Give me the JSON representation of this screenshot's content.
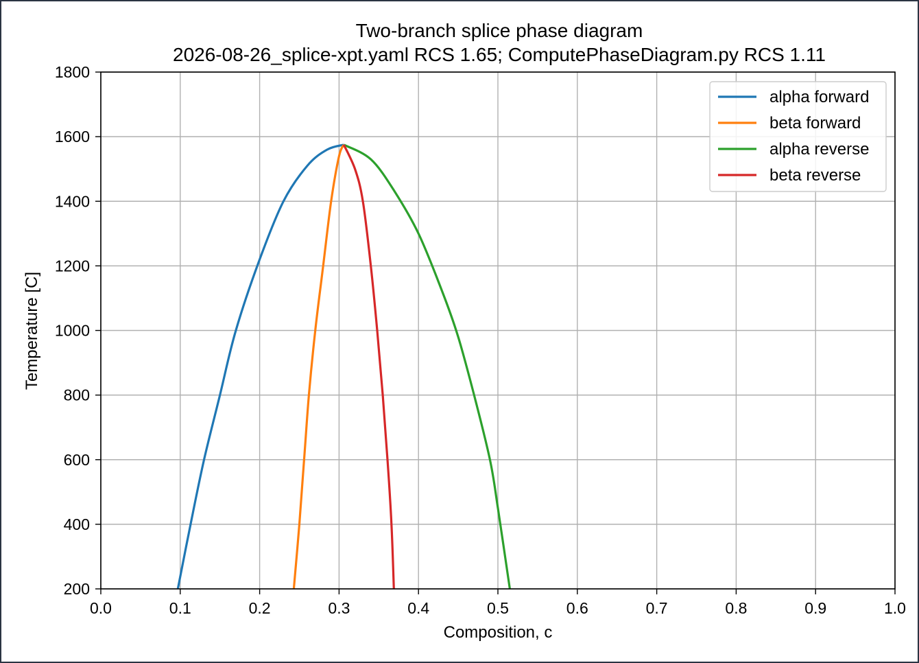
{
  "chart_data": {
    "type": "line",
    "title": "Two-branch splice phase diagram",
    "subtitle": "2026-08-26_splice-xpt.yaml RCS 1.65; ComputePhaseDiagram.py RCS 1.11",
    "xlabel": "Composition, c",
    "ylabel": "Temperature [C]",
    "xlim": [
      0.0,
      1.0
    ],
    "ylim": [
      200,
      1800
    ],
    "xticks": [
      0.0,
      0.1,
      0.2,
      0.3,
      0.4,
      0.5,
      0.6,
      0.7,
      0.8,
      0.9,
      1.0
    ],
    "xtick_labels": [
      "0.0",
      "0.1",
      "0.2",
      "0.3",
      "0.4",
      "0.5",
      "0.6",
      "0.7",
      "0.8",
      "0.9",
      "1.0"
    ],
    "yticks": [
      200,
      400,
      600,
      800,
      1000,
      1200,
      1400,
      1600,
      1800
    ],
    "ytick_labels": [
      "200",
      "400",
      "600",
      "800",
      "1000",
      "1200",
      "1400",
      "1600",
      "1800"
    ],
    "grid": true,
    "legend_position": "top-right",
    "series": [
      {
        "name": "alpha forward",
        "color": "#1f77b4",
        "x": [
          0.097,
          0.113,
          0.13,
          0.15,
          0.17,
          0.2,
          0.23,
          0.26,
          0.285,
          0.306
        ],
        "y": [
          200,
          400,
          600,
          800,
          1000,
          1220,
          1400,
          1510,
          1560,
          1575
        ]
      },
      {
        "name": "beta forward",
        "color": "#ff7f0e",
        "x": [
          0.243,
          0.25,
          0.256,
          0.262,
          0.27,
          0.28,
          0.29,
          0.3,
          0.306
        ],
        "y": [
          200,
          400,
          600,
          800,
          1000,
          1200,
          1400,
          1540,
          1575
        ]
      },
      {
        "name": "alpha reverse",
        "color": "#2ca02c",
        "x": [
          0.306,
          0.34,
          0.37,
          0.4,
          0.43,
          0.45,
          0.47,
          0.49,
          0.5,
          0.515
        ],
        "y": [
          1575,
          1530,
          1430,
          1300,
          1120,
          980,
          800,
          600,
          450,
          200
        ]
      },
      {
        "name": "beta reverse",
        "color": "#d62728",
        "x": [
          0.306,
          0.32,
          0.33,
          0.34,
          0.348,
          0.355,
          0.361,
          0.366,
          0.369
        ],
        "y": [
          1575,
          1500,
          1400,
          1200,
          1000,
          800,
          600,
          400,
          200
        ]
      }
    ]
  }
}
